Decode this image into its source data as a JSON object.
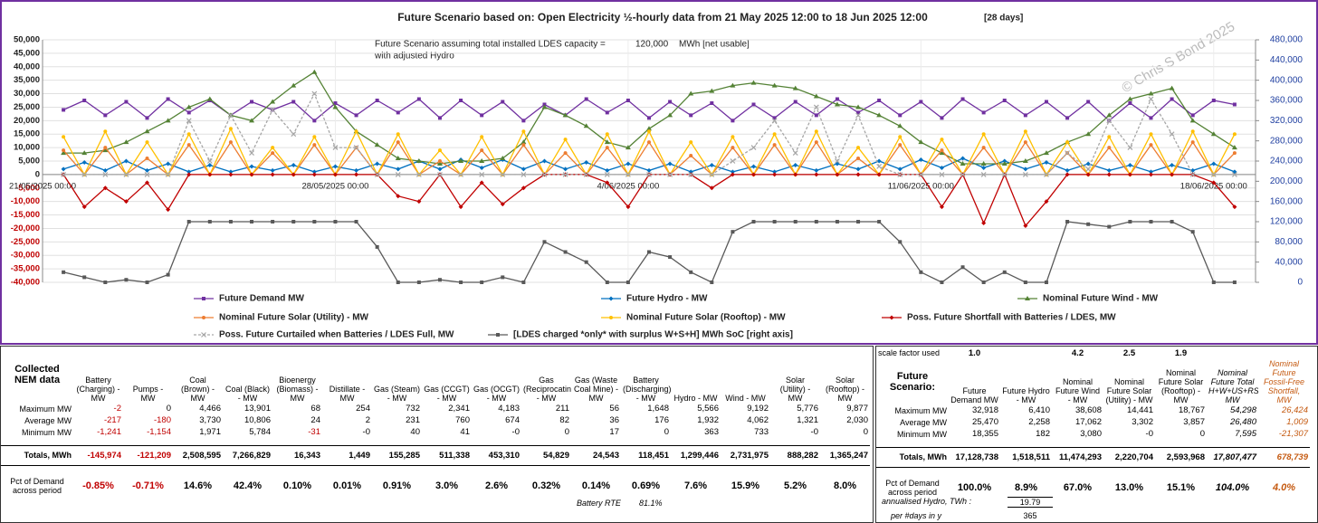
{
  "chart_data": {
    "type": "line",
    "title": "Future Scenario based on:  Open Electricity ½-hourly data from 21 May 2025 12:00  to 18 Jun 2025 12:00",
    "subtitle": "[28 days]",
    "annotations": [
      "Future Scenario assuming total installed LDES capacity =",
      "120,000",
      "MWh [net usable]",
      "with adjusted Hydro"
    ],
    "watermark": "© Chris S Bond  2025",
    "x": [
      "2025-05-21 12:00",
      "2025-05-22 00:00",
      "2025-05-22 12:00",
      "2025-05-23 00:00",
      "2025-05-23 12:00",
      "2025-05-24 00:00",
      "2025-05-24 12:00",
      "2025-05-25 00:00",
      "2025-05-25 12:00",
      "2025-05-26 00:00",
      "2025-05-26 12:00",
      "2025-05-27 00:00",
      "2025-05-27 12:00",
      "2025-05-28 00:00",
      "2025-05-28 12:00",
      "2025-05-29 00:00",
      "2025-05-29 12:00",
      "2025-05-30 00:00",
      "2025-05-30 12:00",
      "2025-05-31 00:00",
      "2025-05-31 12:00",
      "2025-06-01 00:00",
      "2025-06-01 12:00",
      "2025-06-02 00:00",
      "2025-06-02 12:00",
      "2025-06-03 00:00",
      "2025-06-03 12:00",
      "2025-06-04 00:00",
      "2025-06-04 12:00",
      "2025-06-05 00:00",
      "2025-06-05 12:00",
      "2025-06-06 00:00",
      "2025-06-06 12:00",
      "2025-06-07 00:00",
      "2025-06-07 12:00",
      "2025-06-08 00:00",
      "2025-06-08 12:00",
      "2025-06-09 00:00",
      "2025-06-09 12:00",
      "2025-06-10 00:00",
      "2025-06-10 12:00",
      "2025-06-11 00:00",
      "2025-06-11 12:00",
      "2025-06-12 00:00",
      "2025-06-12 12:00",
      "2025-06-13 00:00",
      "2025-06-13 12:00",
      "2025-06-14 00:00",
      "2025-06-14 12:00",
      "2025-06-15 00:00",
      "2025-06-15 12:00",
      "2025-06-16 00:00",
      "2025-06-16 12:00",
      "2025-06-17 00:00",
      "2025-06-17 12:00",
      "2025-06-18 00:00",
      "2025-06-18 12:00"
    ],
    "xlim": [
      "2025-05-21 00:00",
      "2025-06-19 00:00"
    ],
    "xticks": [
      {
        "value": "2025-05-21 00:00",
        "label": "21/05/2025 00:00"
      },
      {
        "value": "2025-05-28 00:00",
        "label": "28/05/2025 00:00"
      },
      {
        "value": "2025-06-04 00:00",
        "label": "4/06/2025 00:00"
      },
      {
        "value": "2025-06-11 00:00",
        "label": "11/06/2025 00:00"
      },
      {
        "value": "2025-06-18 00:00",
        "label": "18/06/2025 00:00"
      }
    ],
    "ylim": [
      -40000,
      50000
    ],
    "yticks": [
      {
        "value": -40000,
        "label": "-40,000"
      },
      {
        "value": -35000,
        "label": "-35,000"
      },
      {
        "value": -30000,
        "label": "-30,000"
      },
      {
        "value": -25000,
        "label": "-25,000"
      },
      {
        "value": -20000,
        "label": "-20,000"
      },
      {
        "value": -15000,
        "label": "-15,000"
      },
      {
        "value": -10000,
        "label": "-10,000"
      },
      {
        "value": -5000,
        "label": "-5,000"
      },
      0,
      {
        "value": 5000,
        "label": "5,000"
      },
      {
        "value": 10000,
        "label": "10,000"
      },
      {
        "value": 15000,
        "label": "15,000"
      },
      {
        "value": 20000,
        "label": "20,000"
      },
      {
        "value": 25000,
        "label": "25,000"
      },
      {
        "value": 30000,
        "label": "30,000"
      },
      {
        "value": 35000,
        "label": "35,000"
      },
      {
        "value": 40000,
        "label": "40,000"
      },
      {
        "value": 45000,
        "label": "45,000"
      },
      {
        "value": 50000,
        "label": "50,000"
      }
    ],
    "y2lim": [
      0,
      480000
    ],
    "y2ticks": [
      0,
      {
        "value": 40000,
        "label": "40,000"
      },
      {
        "value": 80000,
        "label": "80,000"
      },
      {
        "value": 120000,
        "label": "120,000"
      },
      {
        "value": 160000,
        "label": "160,000"
      },
      {
        "value": 200000,
        "label": "200,000"
      },
      {
        "value": 240000,
        "label": "240,000"
      },
      {
        "value": 280000,
        "label": "280,000"
      },
      {
        "value": 320000,
        "label": "320,000"
      },
      {
        "value": 360000,
        "label": "360,000"
      },
      {
        "value": 400000,
        "label": "400,000"
      },
      {
        "value": 440000,
        "label": "440,000"
      },
      {
        "value": 480000,
        "label": "480,000"
      }
    ],
    "grid": true,
    "series": [
      {
        "name": "Future Demand MW",
        "color": "#7030a0",
        "marker": "square",
        "values": [
          24000,
          27500,
          22000,
          27000,
          21000,
          28000,
          23000,
          27500,
          22000,
          27000,
          24000,
          27000,
          20000,
          26500,
          22000,
          27500,
          23000,
          28000,
          21000,
          27500,
          22000,
          27000,
          20000,
          26000,
          22000,
          28000,
          23000,
          27500,
          21000,
          27000,
          22000,
          26500,
          20000,
          26000,
          21000,
          27000,
          22000,
          28000,
          23000,
          27500,
          22000,
          27000,
          21000,
          28000,
          23000,
          27500,
          22000,
          27000,
          21000,
          27000,
          20000,
          26500,
          21000,
          28000,
          22000,
          27500,
          26000
        ]
      },
      {
        "name": "Future Hydro - MW",
        "color": "#0070c0",
        "marker": "diamond",
        "values": [
          2000,
          4500,
          1500,
          5000,
          1500,
          4000,
          1000,
          3500,
          1000,
          3000,
          1500,
          3500,
          1000,
          3000,
          1500,
          4000,
          2000,
          5000,
          2000,
          5500,
          2500,
          5500,
          2000,
          5000,
          2000,
          4500,
          1500,
          4000,
          1500,
          4000,
          1000,
          3500,
          1000,
          3000,
          1000,
          3500,
          1500,
          4000,
          2000,
          5000,
          2000,
          5500,
          2500,
          6000,
          2500,
          5000,
          2000,
          4500,
          1500,
          4000,
          1500,
          3500,
          1000,
          3500,
          1500,
          4000,
          1000
        ]
      },
      {
        "name": "Nominal Future Wind - MW",
        "color": "#548235",
        "marker": "triangle",
        "values": [
          8000,
          8000,
          9000,
          12000,
          16000,
          20000,
          25000,
          28000,
          22000,
          20000,
          27000,
          33000,
          38000,
          25000,
          16000,
          11000,
          6000,
          5000,
          4000,
          5000,
          5000,
          6000,
          12000,
          25000,
          22000,
          18000,
          12000,
          10000,
          17000,
          22000,
          30000,
          31000,
          33000,
          34000,
          33000,
          32000,
          29000,
          26000,
          25000,
          22000,
          18000,
          12000,
          8000,
          4000,
          4000,
          4000,
          5000,
          8000,
          12000,
          15000,
          22000,
          28000,
          30000,
          32000,
          20000,
          15000,
          10000
        ]
      },
      {
        "name": "Nominal Future Solar (Utility) - MW",
        "color": "#ed7d31",
        "marker": "circle",
        "values": [
          9000,
          0,
          10000,
          0,
          6000,
          0,
          11000,
          0,
          12000,
          0,
          8000,
          0,
          11000,
          0,
          10000,
          0,
          12000,
          0,
          5000,
          0,
          9000,
          0,
          11000,
          0,
          8000,
          0,
          10000,
          0,
          12000,
          0,
          7000,
          0,
          10000,
          0,
          11000,
          0,
          12000,
          0,
          6000,
          0,
          11000,
          0,
          9000,
          0,
          10000,
          0,
          12000,
          0,
          8000,
          0,
          10000,
          0,
          11000,
          0,
          12000,
          0,
          8000
        ]
      },
      {
        "name": "Nominal Future Solar (Rooftop) - MW",
        "color": "#ffc000",
        "marker": "circle",
        "values": [
          14000,
          0,
          16000,
          0,
          12000,
          0,
          15000,
          0,
          17000,
          0,
          10000,
          0,
          14000,
          0,
          16000,
          0,
          15000,
          0,
          9000,
          0,
          14000,
          0,
          16000,
          0,
          13000,
          0,
          15000,
          0,
          16000,
          0,
          12000,
          0,
          14000,
          0,
          15000,
          0,
          16000,
          0,
          10000,
          0,
          14000,
          0,
          13000,
          0,
          15000,
          0,
          16000,
          0,
          12000,
          0,
          14000,
          0,
          15000,
          0,
          16000,
          0,
          15000
        ]
      },
      {
        "name": "Poss. Future Shortfall with Batteries / LDES, MW",
        "color": "#c00000",
        "marker": "diamond",
        "values": [
          0,
          -12000,
          -5000,
          -10000,
          -3000,
          -13000,
          0,
          0,
          0,
          0,
          0,
          0,
          0,
          0,
          0,
          0,
          -8000,
          -10000,
          0,
          -12000,
          -3000,
          -11000,
          -5000,
          0,
          0,
          0,
          -3000,
          -12000,
          0,
          0,
          0,
          -5000,
          0,
          0,
          0,
          0,
          0,
          0,
          0,
          0,
          0,
          0,
          -12000,
          0,
          -18000,
          0,
          -19000,
          -10000,
          0,
          0,
          0,
          0,
          0,
          0,
          0,
          -3000,
          -12000
        ]
      },
      {
        "name": "Poss. Future Curtailed when Batteries / LDES Full, MW",
        "color": "#a6a6a6",
        "marker": "x",
        "dash": true,
        "values": [
          0,
          0,
          0,
          0,
          0,
          0,
          20000,
          5000,
          22000,
          8000,
          24000,
          15000,
          30000,
          10000,
          10000,
          0,
          0,
          0,
          0,
          0,
          0,
          0,
          0,
          0,
          0,
          0,
          0,
          0,
          0,
          0,
          0,
          0,
          5000,
          10000,
          20000,
          8000,
          25000,
          5000,
          22000,
          3000,
          0,
          0,
          0,
          0,
          0,
          0,
          0,
          0,
          8000,
          2000,
          20000,
          10000,
          28000,
          15000,
          0,
          0,
          0
        ]
      },
      {
        "name": "[LDES charged *only* with surplus W+S+H]  MWh SoC [right axis]",
        "color": "#595959",
        "marker": "square",
        "axis": "y2",
        "values": [
          20000,
          10000,
          0,
          5000,
          0,
          15000,
          120000,
          120000,
          120000,
          120000,
          120000,
          120000,
          120000,
          120000,
          120000,
          70000,
          0,
          0,
          5000,
          0,
          0,
          10000,
          0,
          80000,
          60000,
          40000,
          0,
          0,
          60000,
          50000,
          20000,
          0,
          100000,
          120000,
          120000,
          120000,
          120000,
          120000,
          120000,
          120000,
          80000,
          20000,
          0,
          30000,
          0,
          20000,
          0,
          0,
          120000,
          115000,
          110000,
          120000,
          120000,
          120000,
          100000,
          0,
          0
        ]
      }
    ]
  },
  "left_table": {
    "title": "Collected NEM data",
    "row_labels": [
      "Maximum MW",
      "Average MW",
      "Minimum MW",
      "Totals, MWh",
      "Pct of Demand across period"
    ],
    "columns": [
      {
        "header": "Battery (Charging) - MW",
        "values": [
          "-2",
          "-217",
          "-1,241",
          "-145,974",
          "-0.85%"
        ]
      },
      {
        "header": "Pumps - MW",
        "values": [
          "0",
          "-180",
          "-1,154",
          "-121,209",
          "-0.71%"
        ]
      },
      {
        "header": "Coal (Brown) - MW",
        "values": [
          "4,466",
          "3,730",
          "1,971",
          "2,508,595",
          "14.6%"
        ]
      },
      {
        "header": "Coal (Black) - MW",
        "values": [
          "13,901",
          "10,806",
          "5,784",
          "7,266,829",
          "42.4%"
        ]
      },
      {
        "header": "Bioenergy (Biomass) - MW",
        "values": [
          "68",
          "24",
          "-31",
          "16,343",
          "0.10%"
        ]
      },
      {
        "header": "Distillate - MW",
        "values": [
          "254",
          "2",
          "-0",
          "1,449",
          "0.01%"
        ]
      },
      {
        "header": "Gas (Steam) - MW",
        "values": [
          "732",
          "231",
          "40",
          "155,285",
          "0.91%"
        ]
      },
      {
        "header": "Gas (CCGT) - MW",
        "values": [
          "2,341",
          "760",
          "41",
          "511,338",
          "3.0%"
        ]
      },
      {
        "header": "Gas (OCGT) - MW",
        "values": [
          "4,183",
          "674",
          "-0",
          "453,310",
          "2.6%"
        ]
      },
      {
        "header": "Gas (Reciprocating) - MW",
        "values": [
          "211",
          "82",
          "0",
          "54,829",
          "0.32%"
        ]
      },
      {
        "header": "Gas (Waste Coal Mine) - MW",
        "values": [
          "56",
          "36",
          "17",
          "24,543",
          "0.14%"
        ]
      },
      {
        "header": "Battery (Discharging) - MW",
        "values": [
          "1,648",
          "176",
          "0",
          "118,451",
          "0.69%"
        ]
      },
      {
        "header": "Hydro - MW",
        "values": [
          "5,566",
          "1,932",
          "363",
          "1,299,446",
          "7.6%"
        ]
      },
      {
        "header": "Wind - MW",
        "values": [
          "9,192",
          "4,062",
          "733",
          "2,731,975",
          "15.9%"
        ]
      },
      {
        "header": "Solar (Utility) - MW",
        "values": [
          "5,776",
          "1,321",
          "-0",
          "888,282",
          "5.2%"
        ]
      },
      {
        "header": "Solar (Rooftop) - MW",
        "values": [
          "9,877",
          "2,030",
          "0",
          "1,365,247",
          "8.0%"
        ]
      }
    ],
    "note_label": "Battery RTE",
    "note_value": "81.1%"
  },
  "right_table": {
    "title": "Future Scenario:",
    "scale_label": "scale factor used",
    "row_labels": [
      "Maximum MW",
      "Average MW",
      "Minimum MW",
      "Totals, MWh",
      "Pct of Demand across period"
    ],
    "columns": [
      {
        "header": "Future Demand MW",
        "scale": "1.0",
        "values": [
          "32,918",
          "25,470",
          "18,355",
          "17,128,738",
          "100.0%"
        ]
      },
      {
        "header": "Future Hydro - MW",
        "values": [
          "6,410",
          "2,258",
          "182",
          "1,518,511",
          "8.9%"
        ]
      },
      {
        "header": "Nominal Future Wind - MW",
        "scale": "4.2",
        "values": [
          "38,608",
          "17,062",
          "3,080",
          "11,474,293",
          "67.0%"
        ]
      },
      {
        "header": "Nominal Future Solar (Utility) - MW",
        "scale": "2.5",
        "values": [
          "14,441",
          "3,302",
          "-0",
          "2,220,704",
          "13.0%"
        ]
      },
      {
        "header": "Nominal Future Solar (Rooftop) - MW",
        "scale": "1.9",
        "values": [
          "18,767",
          "3,857",
          "0",
          "2,593,968",
          "15.1%"
        ]
      },
      {
        "header": "Nominal Future Total H+W+US+RS, MW",
        "values": [
          "54,298",
          "26,480",
          "7,595",
          "17,807,477",
          "104.0%"
        ]
      },
      {
        "header": "Nominal Future Fossil-Free Shortfall, MW",
        "values": [
          "26,424",
          "1,009",
          "-21,307",
          "678,739",
          "4.0%"
        ]
      }
    ],
    "annual_label": "annualised Hydro, TWh :",
    "annual_value": "19.79",
    "days_label": "per #days in y",
    "days_value": "365"
  }
}
